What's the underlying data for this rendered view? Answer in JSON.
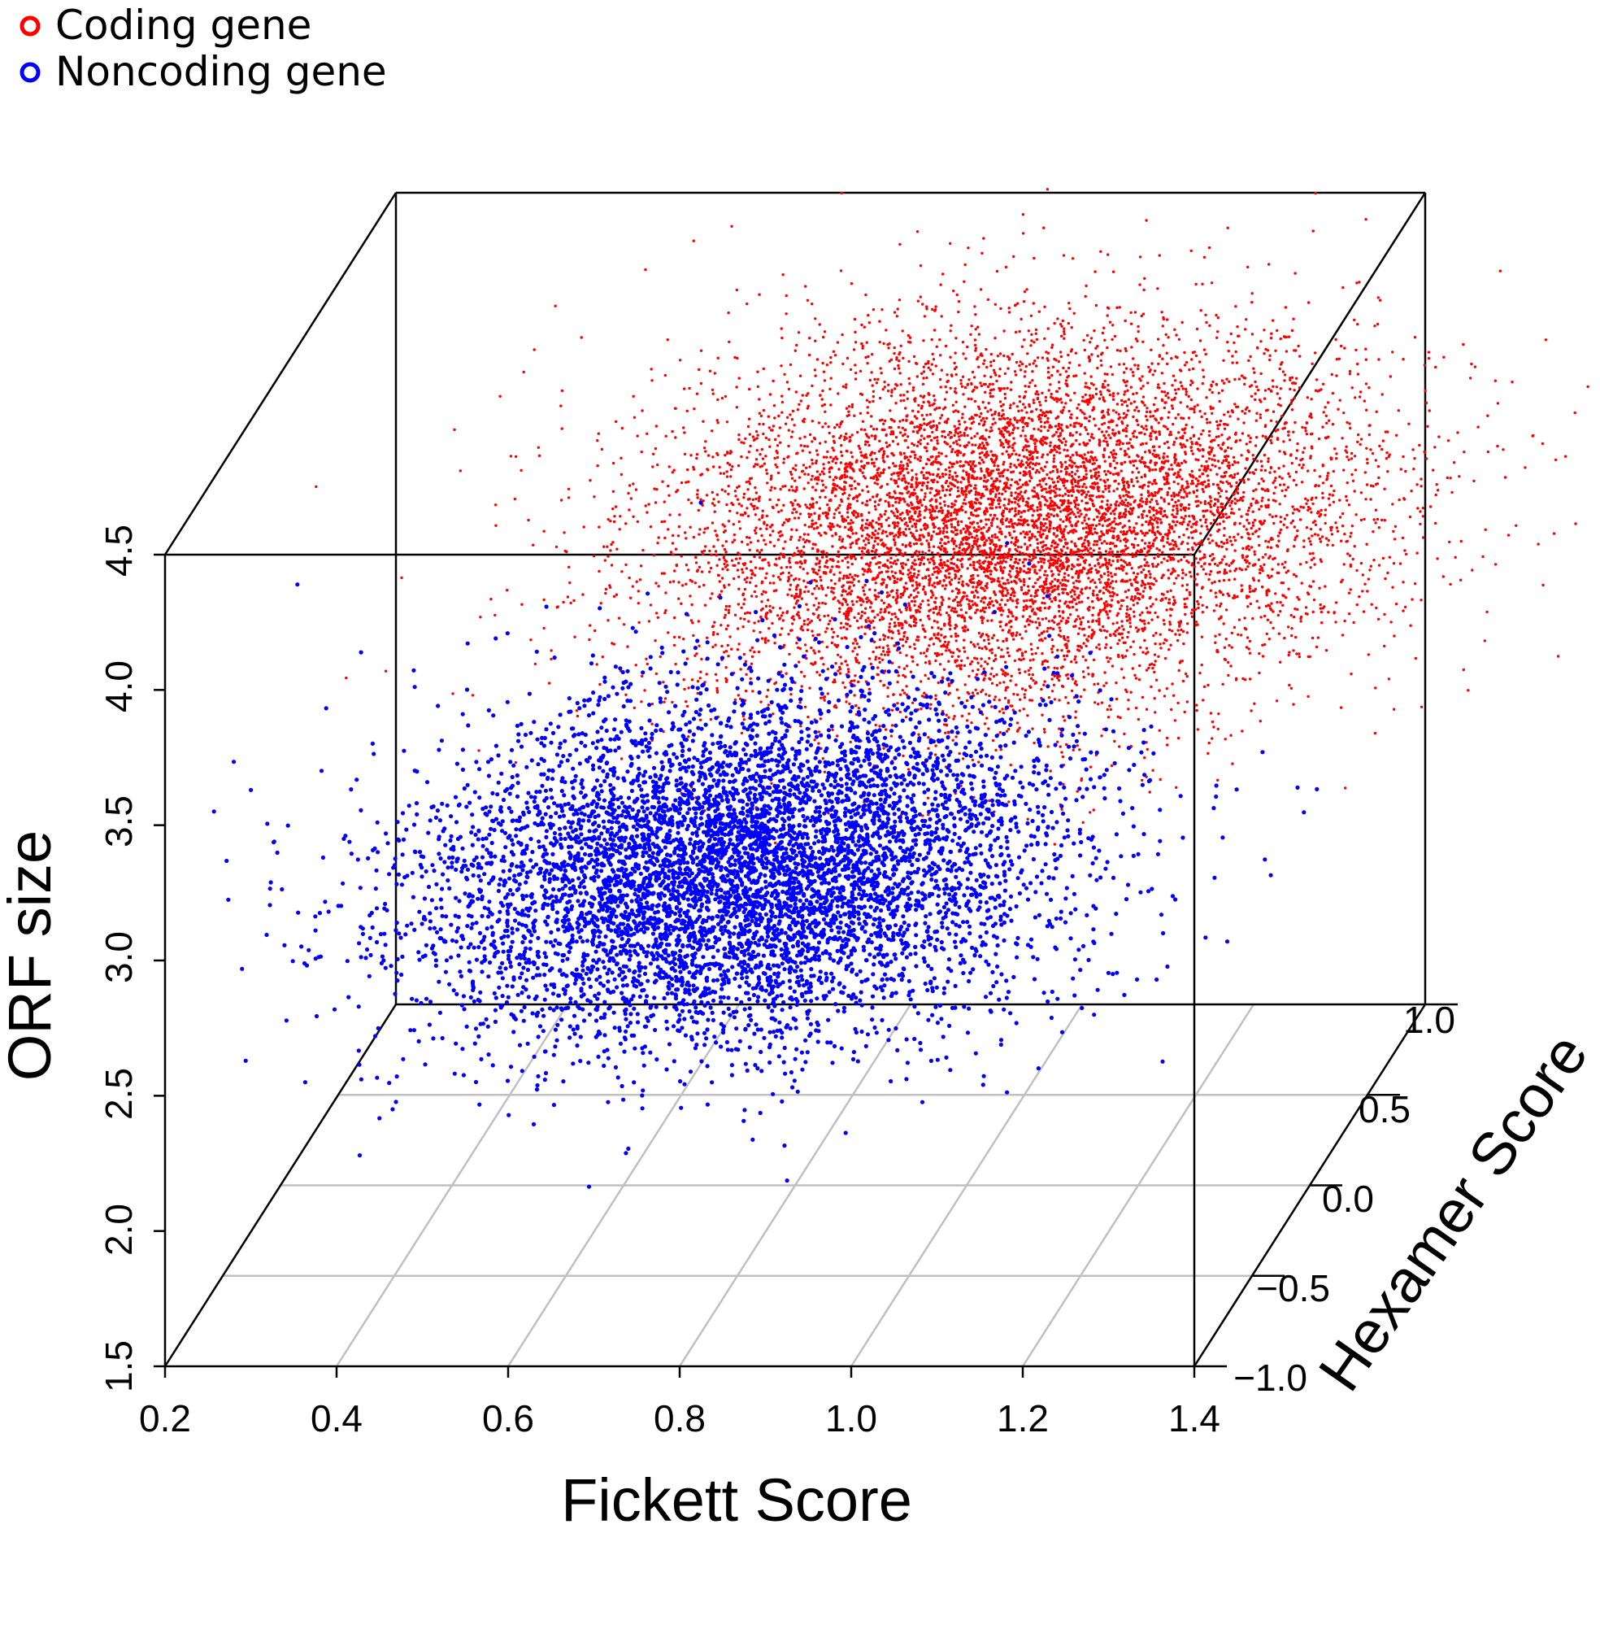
{
  "chart_data": {
    "type": "scatter3d",
    "title": "",
    "xlabel": "Fickett Score",
    "ylabel": "Hexamer Score",
    "zlabel": "ORF size",
    "xlim": [
      0.2,
      1.4
    ],
    "ylim": [
      -1.0,
      1.0
    ],
    "zlim": [
      1.5,
      4.5
    ],
    "x_ticks": [
      "0.2",
      "0.4",
      "0.6",
      "0.8",
      "1.0",
      "1.2",
      "1.4"
    ],
    "y_ticks": [
      "−1.0",
      "−0.5",
      "0.0",
      "0.5",
      "1.0"
    ],
    "z_ticks": [
      "1.5",
      "2.0",
      "2.5",
      "3.0",
      "3.5",
      "4.0",
      "4.5"
    ],
    "grid": "floor",
    "legend_position": "top-left",
    "series": [
      {
        "name": "Coding gene",
        "color": "#ff0000",
        "n_points": 9000,
        "fickett": {
          "mean": 1.02,
          "sd": 0.2
        },
        "hexamer": {
          "mean": 0.3,
          "sd": 0.35
        },
        "orf_size": {
          "mean": 3.75,
          "sd": 0.27
        }
      },
      {
        "name": "Noncoding gene",
        "color": "#0000ff",
        "n_points": 7000,
        "fickett": {
          "mean": 0.75,
          "sd": 0.18
        },
        "hexamer": {
          "mean": -0.12,
          "sd": 0.3
        },
        "orf_size": {
          "mean": 2.75,
          "sd": 0.25
        }
      }
    ]
  }
}
